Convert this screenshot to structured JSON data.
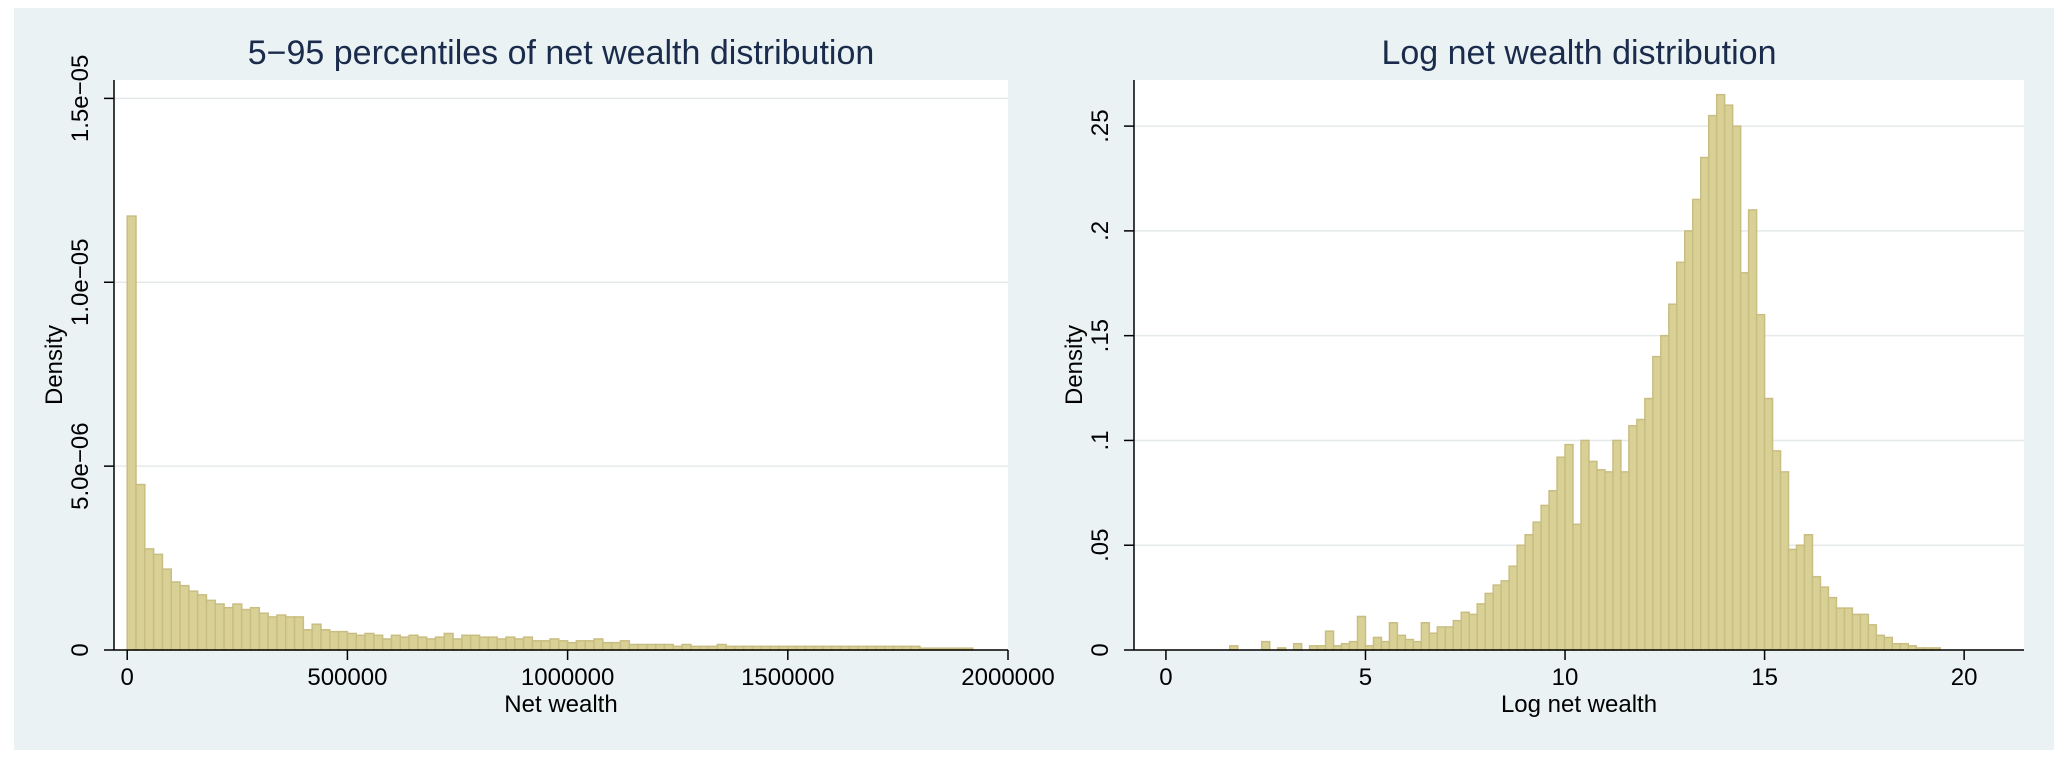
{
  "colors": {
    "outer_background": "#eaf2f3",
    "plot_background": "#ffffff",
    "bar_fill": "#d8d095",
    "bar_stroke": "#c9be82",
    "title_color": "#1a2b4c",
    "axis_color": "#000000",
    "grid_color": "#e4eaec"
  },
  "chart_data": [
    {
      "type": "bar",
      "subtype": "histogram",
      "title": "5−95 percentiles of net wealth distribution",
      "xlabel": "Net wealth",
      "ylabel": "Density",
      "xlim": [
        -30000,
        2000000
      ],
      "ylim": [
        0,
        1.55e-05
      ],
      "xticks": [
        0,
        500000,
        1000000,
        1500000,
        2000000
      ],
      "xtick_labels": [
        "0",
        "500000",
        "1000000",
        "1500000",
        "2000000"
      ],
      "yticks": [
        0,
        5e-06,
        1e-05,
        1.5e-05
      ],
      "ytick_labels": [
        "0",
        "5.0e−06",
        "1.0e−05",
        "1.5e−05"
      ],
      "grid": true,
      "bin_start": 0,
      "bin_width": 20000,
      "values": [
        1.18e-05,
        4.5e-06,
        2.75e-06,
        2.6e-06,
        2.2e-06,
        1.85e-06,
        1.75e-06,
        1.6e-06,
        1.5e-06,
        1.35e-06,
        1.25e-06,
        1.15e-06,
        1.25e-06,
        1.1e-06,
        1.15e-06,
        1e-06,
        9e-07,
        9.5e-07,
        9e-07,
        9e-07,
        5.5e-07,
        7e-07,
        5.5e-07,
        5e-07,
        5e-07,
        4.5e-07,
        4e-07,
        4.5e-07,
        4e-07,
        3e-07,
        4e-07,
        3.5e-07,
        4e-07,
        3.5e-07,
        3e-07,
        3.5e-07,
        4.5e-07,
        3e-07,
        4e-07,
        4e-07,
        3.5e-07,
        3.5e-07,
        3e-07,
        3.5e-07,
        3e-07,
        3.5e-07,
        2.5e-07,
        2.5e-07,
        3e-07,
        2.5e-07,
        2e-07,
        2.5e-07,
        2.5e-07,
        3e-07,
        2e-07,
        2e-07,
        2.5e-07,
        1.5e-07,
        1.5e-07,
        1.5e-07,
        1.5e-07,
        1.5e-07,
        1e-07,
        1.5e-07,
        1e-07,
        1e-07,
        1e-07,
        1.5e-07,
        1e-07,
        1e-07,
        1e-07,
        1e-07,
        1e-07,
        1e-07,
        1e-07,
        1e-07,
        1e-07,
        1e-07,
        1e-07,
        1e-07,
        1e-07,
        1e-07,
        1e-07,
        1e-07,
        1e-07,
        1e-07,
        1e-07,
        1e-07,
        1e-07,
        1e-07,
        5e-08,
        5e-08,
        5e-08,
        5e-08,
        5e-08,
        5e-08
      ]
    },
    {
      "type": "bar",
      "subtype": "histogram",
      "title": "Log net wealth distribution",
      "xlabel": "Log net wealth",
      "ylabel": "Density",
      "xlim": [
        -0.8,
        21.5
      ],
      "ylim": [
        0,
        0.272
      ],
      "xticks": [
        0,
        5,
        10,
        15,
        20
      ],
      "xtick_labels": [
        "0",
        "5",
        "10",
        "15",
        "20"
      ],
      "yticks": [
        0,
        0.05,
        0.1,
        0.15,
        0.2,
        0.25
      ],
      "ytick_labels": [
        "0",
        ".05",
        ".1",
        ".15",
        ".2",
        ".25"
      ],
      "grid": true,
      "bin_start": 1.6,
      "bin_width": 0.2,
      "values": [
        0.002,
        0,
        0,
        0,
        0.004,
        0,
        0.001,
        0,
        0.003,
        0,
        0.002,
        0.002,
        0.009,
        0.002,
        0.003,
        0.004,
        0.016,
        0.002,
        0.006,
        0.004,
        0.013,
        0.007,
        0.005,
        0.004,
        0.013,
        0.008,
        0.011,
        0.011,
        0.014,
        0.018,
        0.017,
        0.022,
        0.027,
        0.031,
        0.033,
        0.04,
        0.05,
        0.055,
        0.061,
        0.069,
        0.076,
        0.092,
        0.098,
        0.06,
        0.1,
        0.09,
        0.086,
        0.085,
        0.1,
        0.085,
        0.107,
        0.11,
        0.12,
        0.14,
        0.15,
        0.165,
        0.185,
        0.2,
        0.215,
        0.235,
        0.255,
        0.265,
        0.26,
        0.25,
        0.18,
        0.21,
        0.16,
        0.12,
        0.095,
        0.085,
        0.048,
        0.05,
        0.055,
        0.035,
        0.03,
        0.025,
        0.02,
        0.02,
        0.017,
        0.017,
        0.012,
        0.007,
        0.006,
        0.003,
        0.003,
        0.002,
        0.001,
        0.001,
        0.001
      ]
    }
  ]
}
